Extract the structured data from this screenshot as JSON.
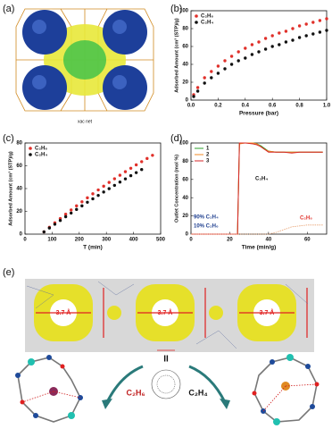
{
  "panels": {
    "a": {
      "label": "(a)",
      "caption": "xac net"
    },
    "e": {
      "label": "(e)",
      "pore_labels": [
        "3.7 Å",
        "3.7 Å",
        "3.7 Å"
      ],
      "center_label": "II",
      "left_guest": "C₂H₆",
      "right_guest": "C₂H₄"
    }
  },
  "chart_data": [
    {
      "type": "scatter",
      "label": "(b)",
      "xlabel": "Pressure (bar)",
      "ylabel": "Adsorbed Amount (cm³ (STP)/g)",
      "legend": "upper left",
      "xlim": [
        0,
        1
      ],
      "ylim": [
        0,
        100
      ],
      "xticks": [
        {
          "value": 0,
          "label": "0.0"
        },
        0.2,
        0.4,
        0.6,
        0.8,
        {
          "value": 1,
          "label": "1.0"
        }
      ],
      "yticks": [
        0,
        20,
        40,
        60,
        80,
        100
      ],
      "series": [
        {
          "name": "C₂H₆",
          "color": "#e0302a",
          "x": [
            0.02,
            0.05,
            0.1,
            0.15,
            0.2,
            0.25,
            0.3,
            0.35,
            0.4,
            0.45,
            0.5,
            0.55,
            0.6,
            0.65,
            0.7,
            0.75,
            0.8,
            0.85,
            0.9,
            0.95,
            1.0
          ],
          "values": [
            6,
            14,
            25,
            32,
            38,
            44,
            49,
            54,
            58,
            62,
            65,
            69,
            72,
            75,
            77,
            80,
            83,
            85,
            87,
            89,
            91
          ]
        },
        {
          "name": "C₂H₄",
          "color": "#111111",
          "x": [
            0.02,
            0.05,
            0.1,
            0.15,
            0.2,
            0.25,
            0.3,
            0.35,
            0.4,
            0.45,
            0.5,
            0.55,
            0.6,
            0.65,
            0.7,
            0.75,
            0.8,
            0.85,
            0.9,
            0.95,
            1.0
          ],
          "values": [
            4,
            10,
            19,
            25,
            30,
            35,
            40,
            44,
            47,
            51,
            54,
            57,
            60,
            62,
            65,
            67,
            70,
            72,
            74,
            76,
            78
          ]
        }
      ]
    },
    {
      "type": "scatter",
      "label": "(c)",
      "xlabel": "T (min)",
      "ylabel": "Adsorbed Amount (cm³ (STP)/g)",
      "legend": "upper left",
      "xlim": [
        0,
        500
      ],
      "ylim": [
        0,
        80
      ],
      "xticks": [
        0,
        100,
        200,
        300,
        400,
        500
      ],
      "yticks": [
        0,
        20,
        40,
        60,
        80
      ],
      "series": [
        {
          "name": "C₂H₆",
          "color": "#e0302a",
          "x": [
            70,
            90,
            110,
            130,
            150,
            170,
            190,
            210,
            230,
            250,
            270,
            290,
            310,
            330,
            350,
            370,
            390,
            410,
            430,
            450,
            470
          ],
          "values": [
            2,
            6,
            9.9,
            13.7,
            17.5,
            21.2,
            24.8,
            28.4,
            31.9,
            35.4,
            38.8,
            42.1,
            45.4,
            48.6,
            51.7,
            54.8,
            57.8,
            60.8,
            63.6,
            66.4,
            69.2
          ]
        },
        {
          "name": "C₂H₄",
          "color": "#111111",
          "x": [
            70,
            90,
            110,
            130,
            150,
            170,
            190,
            210,
            230,
            250,
            270,
            290,
            310,
            330,
            350,
            370,
            390,
            410,
            430
          ],
          "values": [
            2,
            5.4,
            8.7,
            12,
            15.3,
            18.5,
            21.7,
            24.8,
            28,
            31,
            34,
            37,
            39.9,
            42.8,
            45.7,
            48.5,
            51.3,
            54,
            56.7
          ]
        }
      ]
    },
    {
      "type": "line",
      "label": "(d)",
      "xlabel": "Time (min/g)",
      "ylabel": "Outlet Concentration (mol %)",
      "legend": "upper left",
      "xlim": [
        0,
        70
      ],
      "ylim": [
        0,
        100
      ],
      "xticks": [
        0,
        20,
        40,
        60
      ],
      "yticks": [
        0,
        20,
        40,
        60,
        80,
        100
      ],
      "x": [
        0,
        5,
        10,
        15,
        20,
        24,
        25,
        28,
        32,
        34,
        36,
        38,
        40,
        44,
        48,
        52,
        56,
        60,
        64,
        68
      ],
      "series": [
        {
          "name": "1",
          "color": "#2ca02c",
          "values": [
            0,
            0,
            0,
            0,
            0,
            0,
            100,
            100,
            100,
            99,
            97,
            94,
            91,
            90,
            90,
            90,
            90,
            90,
            90,
            90
          ]
        },
        {
          "name": "2",
          "color": "#f08a24",
          "values": [
            0,
            0,
            0,
            0,
            0,
            0,
            99,
            100,
            100,
            99,
            96,
            93,
            91,
            90,
            90,
            90,
            90,
            90,
            90,
            90
          ]
        },
        {
          "name": "3",
          "color": "#d62728",
          "values": [
            0,
            0,
            0,
            0,
            0,
            0,
            100,
            100,
            99,
            98,
            96,
            93,
            90,
            90,
            90,
            89,
            90,
            90,
            90,
            90
          ]
        },
        {
          "color": "#e8a070",
          "values": [
            0,
            0,
            0,
            0,
            0,
            0,
            0,
            0,
            0,
            0,
            0,
            0,
            0,
            2,
            5,
            8,
            9,
            10,
            10,
            10
          ]
        }
      ],
      "annotations": [
        {
          "text": "C₂H₄",
          "color": "#111111"
        },
        {
          "text": "C₂H₆",
          "color": "#e0302a"
        },
        {
          "text": "90% C₂H₄",
          "color": "#1f3f8f"
        },
        {
          "text": "10% C₂H₆",
          "color": "#1f3f8f"
        }
      ]
    }
  ]
}
